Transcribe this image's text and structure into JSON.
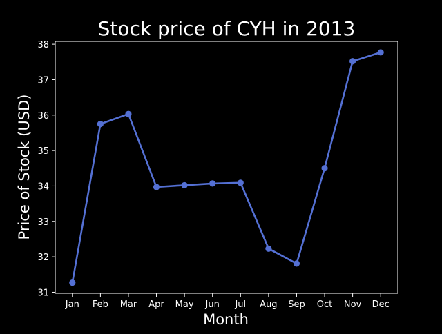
{
  "chart_data": {
    "type": "line",
    "title": "Stock price of CYH in 2013",
    "xlabel": "Month",
    "ylabel": "Price of Stock (USD)",
    "categories": [
      "Jan",
      "Feb",
      "Mar",
      "Apr",
      "May",
      "Jun",
      "Jul",
      "Aug",
      "Sep",
      "Oct",
      "Nov",
      "Dec"
    ],
    "series": [
      {
        "values": [
          31.27,
          35.75,
          36.03,
          33.97,
          34.02,
          34.07,
          34.09,
          32.23,
          31.81,
          34.5,
          37.52,
          37.77
        ]
      }
    ],
    "ylim": [
      30.97,
      38.08
    ],
    "yticks": [
      31,
      32,
      33,
      34,
      35,
      36,
      37,
      38
    ],
    "grid": false,
    "background_color": "#000000",
    "foreground_color": "#ffffff",
    "line_color": "#5470d4",
    "marker": "circle"
  }
}
